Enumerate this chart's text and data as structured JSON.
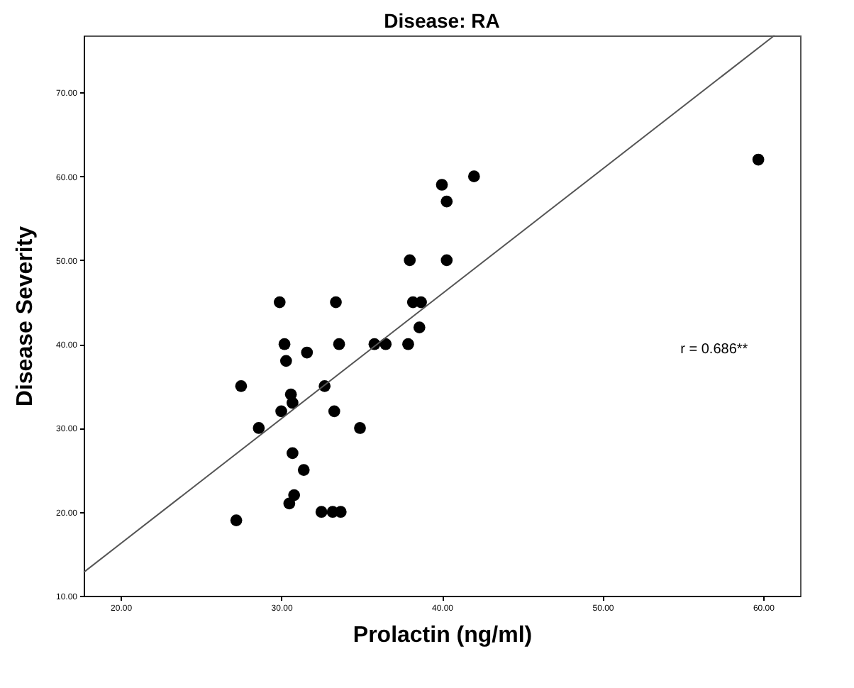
{
  "chart_data": {
    "type": "scatter",
    "title": "Disease: RA",
    "xlabel": "Prolactin (ng/ml)",
    "ylabel": "Disease Severity",
    "x": [
      59.7,
      42.0,
      40.0,
      40.3,
      38.0,
      40.3,
      29.9,
      33.4,
      38.2,
      38.7,
      38.6,
      30.2,
      33.6,
      35.8,
      36.5,
      37.9,
      30.3,
      31.6,
      27.5,
      32.7,
      30.6,
      30.7,
      30.0,
      33.3,
      28.6,
      34.9,
      30.7,
      31.4,
      30.8,
      30.5,
      32.5,
      33.2,
      33.7,
      27.2
    ],
    "series": [
      {
        "color": "#000000",
        "marker": "circle",
        "values": [
          62,
          60,
          59,
          57,
          50,
          50,
          45,
          45,
          45,
          45,
          42,
          40,
          40,
          40,
          40,
          40,
          38,
          39,
          35,
          35,
          34,
          33,
          32,
          32,
          30,
          30,
          27,
          25,
          22,
          21,
          20,
          20,
          20,
          19
        ]
      },
      {
        "type": "line",
        "color": "#555555",
        "line_style": "solid",
        "x": [
          17.7,
          60.7
        ],
        "values": [
          12.8,
          76.8
        ]
      }
    ],
    "xlim": [
      17.7,
      62.3
    ],
    "ylim": [
      10,
      76.8
    ],
    "xticks": [
      {
        "value": 20,
        "label": "20.00"
      },
      {
        "value": 30,
        "label": "30.00"
      },
      {
        "value": 40,
        "label": "40.00"
      },
      {
        "value": 50,
        "label": "50.00"
      },
      {
        "value": 60,
        "label": "60.00"
      }
    ],
    "yticks": [
      {
        "value": 10,
        "label": "10.00"
      },
      {
        "value": 20,
        "label": "20.00"
      },
      {
        "value": 30,
        "label": "30.00"
      },
      {
        "value": 40,
        "label": "40.00"
      },
      {
        "value": 50,
        "label": "50.00"
      },
      {
        "value": 60,
        "label": "60.00"
      },
      {
        "value": 70,
        "label": "70.00"
      }
    ],
    "annotations": [
      "r = 0.686**"
    ],
    "grid": false
  }
}
